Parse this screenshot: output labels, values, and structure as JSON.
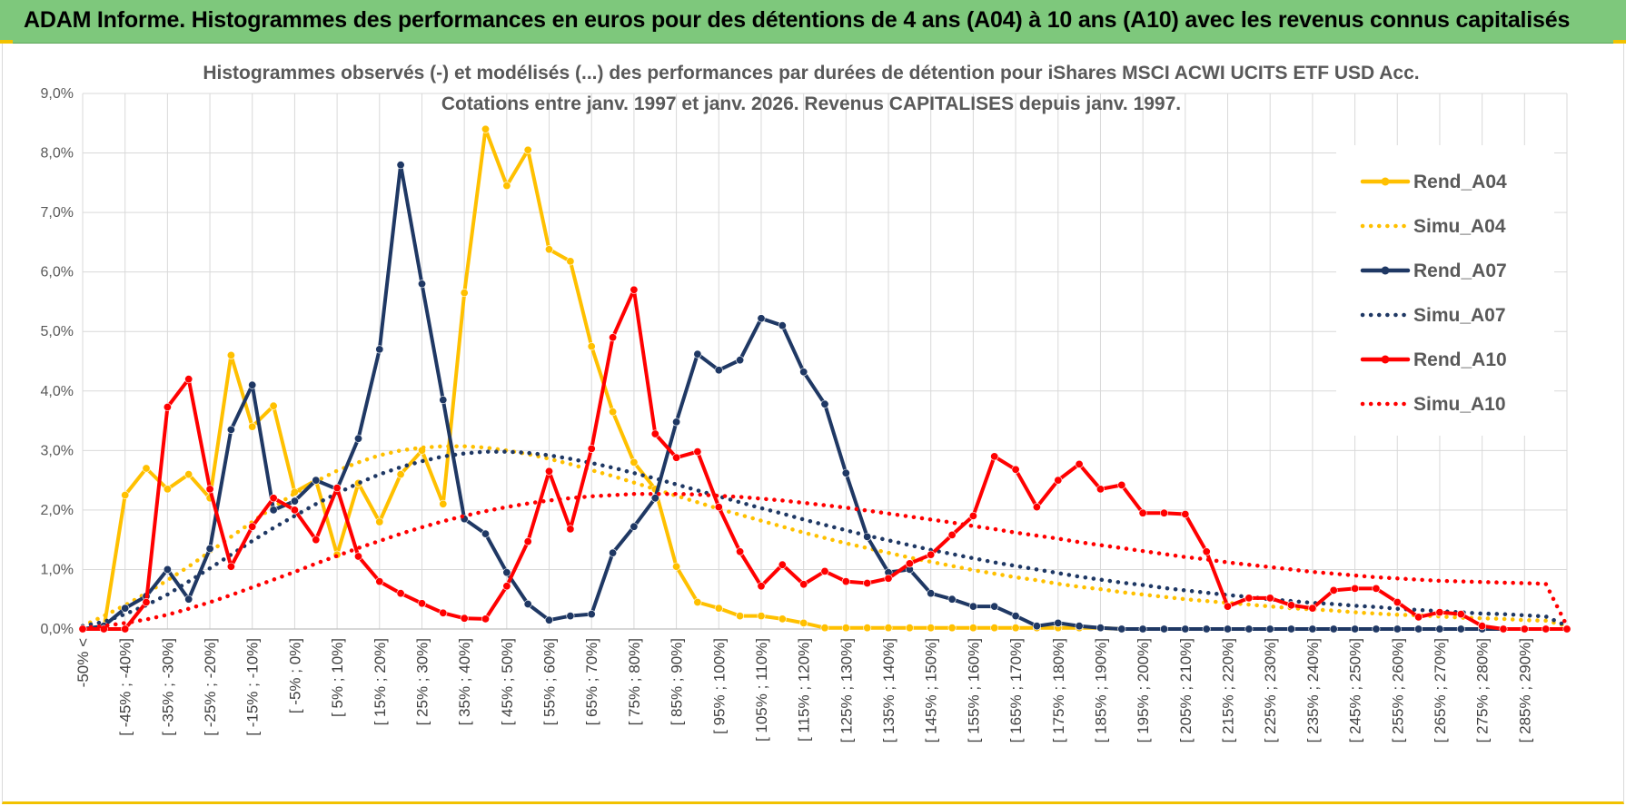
{
  "header": {
    "title": "ADAM Informe. Histogrammes des performances en euros pour des détentions de 4 ans (A04) à 10 ans (A10) avec les revenus connus capitalisés"
  },
  "chart_data": {
    "type": "line",
    "title": "Histogrammes observés (-) et modélisés (...) des performances par durées de détention pour iShares MSCI ACWI UCITS ETF USD Acc.",
    "subtitle": "Cotations entre janv. 1997 et janv. 2026. Revenus CAPITALISES depuis janv. 1997.",
    "ylim": [
      0,
      9
    ],
    "yticks": [
      0,
      1,
      2,
      3,
      4,
      5,
      6,
      7,
      8,
      9
    ],
    "ytick_labels": [
      "0,0%",
      "1,0%",
      "2,0%",
      "3,0%",
      "4,0%",
      "5,0%",
      "6,0%",
      "7,0%",
      "8,0%",
      "9,0%"
    ],
    "grid": true,
    "legend_position": "right",
    "categories": [
      "-50% <",
      "[ -50% ; -45%]",
      "[ -45% ; -40%]",
      "[ -40% ; -35%]",
      "[ -35% ; -30%]",
      "[ -30% ; -25%]",
      "[ -25% ; -20%]",
      "[ -20% ; -15%]",
      "[ -15% ; -10%]",
      "[ -10% ; -5%]",
      "[ -5% ; 0%]",
      "[ 0% ; 5%]",
      "[ 5% ; 10%]",
      "[ 10% ; 15%]",
      "[ 15% ; 20%]",
      "[ 20% ; 25%]",
      "[ 25% ; 30%]",
      "[ 30% ; 35%]",
      "[ 35% ; 40%]",
      "[ 40% ; 45%]",
      "[ 45% ; 50%]",
      "[ 50% ; 55%]",
      "[ 55% ; 60%]",
      "[ 60% ; 65%]",
      "[ 65% ; 70%]",
      "[ 70% ; 75%]",
      "[ 75% ; 80%]",
      "[ 80% ; 85%]",
      "[ 85% ; 90%]",
      "[ 90% ; 95%]",
      "[ 95% ; 100%]",
      "[ 100% ; 105%]",
      "[ 105% ; 110%]",
      "[ 110% ; 115%]",
      "[ 115% ; 120%]",
      "[ 120% ; 125%]",
      "[ 125% ; 130%]",
      "[ 130% ; 135%]",
      "[ 135% ; 140%]",
      "[ 140% ; 145%]",
      "[ 145% ; 150%]",
      "[ 150% ; 155%]",
      "[ 155% ; 160%]",
      "[ 160% ; 165%]",
      "[ 165% ; 170%]",
      "[ 170% ; 175%]",
      "[ 175% ; 180%]",
      "[ 180% ; 185%]",
      "[ 185% ; 190%]",
      "[ 190% ; 195%]",
      "[ 195% ; 200%]",
      "[ 200% ; 205%]",
      "[ 205% ; 210%]",
      "[ 210% ; 215%]",
      "[ 215% ; 220%]",
      "[ 220% ; 225%]",
      "[ 225% ; 230%]",
      "[ 230% ; 235%]",
      "[ 235% ; 240%]",
      "[ 240% ; 245%]",
      "[ 245% ; 250%]",
      "[ 250% ; 255%]",
      "[ 255% ; 260%]",
      "[ 260% ; 265%]",
      "[ 265% ; 270%]",
      "[ 270% ; 275%]",
      "[ 275% ; 280%]",
      "[ 280% ; 285%]",
      "[ 285% ; 290%]",
      "[ 290% ; 295%]",
      "[ 295% ; 300%]"
    ],
    "visible_category_labels": [
      "-50% <",
      "[ -45% ; -40%]",
      "[ -35% ; -30%]",
      "[ -25% ; -20%]",
      "[ -15% ; -10%]",
      "[ -5% ; 0%]",
      "[ 5% ; 10%]",
      "[ 15% ; 20%]",
      "[ 25% ; 30%]",
      "[ 35% ; 40%]",
      "[ 45% ; 50%]",
      "[ 55% ; 60%]",
      "[ 65% ; 70%]",
      "[ 75% ; 80%]",
      "[ 85% ; 90%]",
      "[ 95% ; 100%]",
      "[ 105% ; 110%]",
      "[ 115% ; 120%]",
      "[ 125% ; 130%]",
      "[ 135% ; 140%]",
      "[ 145% ; 150%]",
      "[ 155% ; 160%]",
      "[ 165% ; 170%]",
      "[ 175% ; 180%]",
      "[ 185% ; 190%]",
      "[ 195% ; 200%]",
      "[ 205% ; 210%]",
      "[ 215% ; 220%]",
      "[ 225% ; 230%]",
      "[ 235% ; 240%]",
      "[ 245% ; 250%]",
      "[ 255% ; 260%]",
      "[ 265% ; 270%]",
      "[ 275% ; 280%]",
      "[ 285% ; 290%]"
    ],
    "series": [
      {
        "name": "Rend_A04",
        "color": "#ffc000",
        "style": "solid",
        "markers": true,
        "values": [
          0,
          0,
          2.25,
          2.7,
          2.35,
          2.6,
          2.2,
          4.6,
          3.4,
          3.75,
          2.3,
          2.5,
          1.25,
          2.45,
          1.8,
          2.6,
          3.0,
          2.1,
          5.65,
          8.4,
          7.45,
          8.05,
          6.38,
          6.18,
          4.75,
          3.65,
          2.8,
          2.35,
          1.05,
          0.45,
          0.35,
          0.22,
          0.22,
          0.17,
          0.1,
          0.02,
          0.02,
          0.02,
          0.02,
          0.02,
          0.02,
          0.02,
          0.02,
          0.02,
          0.02,
          0.02,
          0.02,
          0.02,
          0.02,
          0,
          0,
          0,
          0,
          0,
          0,
          0,
          0,
          0,
          0,
          0,
          0,
          0,
          0,
          0,
          0,
          0,
          0,
          0,
          0,
          0,
          0
        ]
      },
      {
        "name": "Simu_A04",
        "color": "#ffc000",
        "style": "dotted",
        "markers": false,
        "values": [
          0.05,
          0.22,
          0.4,
          0.6,
          0.82,
          1.05,
          1.3,
          1.55,
          1.8,
          2.05,
          2.28,
          2.48,
          2.66,
          2.8,
          2.92,
          3.0,
          3.05,
          3.07,
          3.07,
          3.05,
          3.0,
          2.94,
          2.86,
          2.77,
          2.67,
          2.57,
          2.46,
          2.35,
          2.24,
          2.13,
          2.02,
          1.92,
          1.82,
          1.72,
          1.62,
          1.53,
          1.44,
          1.36,
          1.28,
          1.2,
          1.13,
          1.06,
          0.99,
          0.93,
          0.87,
          0.82,
          0.76,
          0.71,
          0.67,
          0.62,
          0.58,
          0.54,
          0.5,
          0.47,
          0.44,
          0.41,
          0.38,
          0.35,
          0.33,
          0.31,
          0.28,
          0.26,
          0.24,
          0.23,
          0.21,
          0.19,
          0.18,
          0.17,
          0.15,
          0.14,
          0.05
        ]
      },
      {
        "name": "Rend_A07",
        "color": "#1f3864",
        "style": "solid",
        "markers": true,
        "values": [
          0,
          0.05,
          0.35,
          0.55,
          1.0,
          0.5,
          1.35,
          3.35,
          4.1,
          2.0,
          2.15,
          2.5,
          2.35,
          3.2,
          4.7,
          7.8,
          5.8,
          3.85,
          1.85,
          1.6,
          0.95,
          0.42,
          0.15,
          0.22,
          0.25,
          1.28,
          1.72,
          2.2,
          3.48,
          4.62,
          4.35,
          4.52,
          5.22,
          5.1,
          4.32,
          3.78,
          2.62,
          1.55,
          0.95,
          1.0,
          0.6,
          0.5,
          0.38,
          0.38,
          0.22,
          0.05,
          0.1,
          0.05,
          0.02,
          0,
          0,
          0,
          0,
          0,
          0,
          0,
          0,
          0,
          0,
          0,
          0,
          0,
          0,
          0,
          0,
          0,
          0,
          0,
          0,
          0,
          0
        ]
      },
      {
        "name": "Simu_A07",
        "color": "#1f3864",
        "style": "dotted",
        "markers": false,
        "values": [
          0.05,
          0.12,
          0.25,
          0.4,
          0.58,
          0.8,
          1.02,
          1.25,
          1.48,
          1.7,
          1.9,
          2.1,
          2.28,
          2.45,
          2.6,
          2.72,
          2.82,
          2.9,
          2.95,
          2.98,
          2.98,
          2.96,
          2.92,
          2.86,
          2.79,
          2.71,
          2.62,
          2.53,
          2.43,
          2.33,
          2.23,
          2.13,
          2.03,
          1.94,
          1.84,
          1.75,
          1.66,
          1.57,
          1.49,
          1.41,
          1.33,
          1.26,
          1.19,
          1.12,
          1.06,
          1.0,
          0.94,
          0.88,
          0.83,
          0.78,
          0.74,
          0.69,
          0.65,
          0.61,
          0.57,
          0.54,
          0.5,
          0.47,
          0.44,
          0.42,
          0.39,
          0.37,
          0.34,
          0.32,
          0.3,
          0.28,
          0.26,
          0.25,
          0.23,
          0.21,
          0.05
        ]
      },
      {
        "name": "Rend_A10",
        "color": "#ff0000",
        "style": "solid",
        "markers": true,
        "values": [
          0,
          0,
          0,
          0.45,
          3.73,
          4.2,
          2.35,
          1.05,
          1.72,
          2.2,
          2.0,
          1.5,
          2.37,
          1.22,
          0.8,
          0.6,
          0.43,
          0.27,
          0.18,
          0.17,
          0.72,
          1.47,
          2.65,
          1.68,
          3.03,
          4.9,
          5.7,
          3.28,
          2.88,
          2.98,
          2.05,
          1.3,
          0.72,
          1.08,
          0.75,
          0.97,
          0.8,
          0.77,
          0.85,
          1.1,
          1.25,
          1.58,
          1.9,
          2.9,
          2.68,
          2.05,
          2.5,
          2.77,
          2.35,
          2.42,
          1.95,
          1.95,
          1.93,
          1.3,
          0.38,
          0.52,
          0.52,
          0.4,
          0.35,
          0.65,
          0.68,
          0.68,
          0.45,
          0.2,
          0.28,
          0.25,
          0.05,
          0,
          0,
          0,
          0
        ]
      },
      {
        "name": "Simu_A10",
        "color": "#ff0000",
        "style": "dotted",
        "markers": false,
        "values": [
          0.02,
          0.05,
          0.1,
          0.16,
          0.24,
          0.34,
          0.45,
          0.57,
          0.7,
          0.83,
          0.96,
          1.1,
          1.23,
          1.36,
          1.48,
          1.6,
          1.71,
          1.81,
          1.9,
          1.98,
          2.05,
          2.11,
          2.16,
          2.2,
          2.23,
          2.25,
          2.27,
          2.27,
          2.27,
          2.26,
          2.24,
          2.22,
          2.19,
          2.16,
          2.12,
          2.08,
          2.04,
          1.99,
          1.94,
          1.89,
          1.84,
          1.79,
          1.73,
          1.68,
          1.62,
          1.57,
          1.52,
          1.46,
          1.41,
          1.36,
          1.31,
          1.26,
          1.21,
          1.17,
          1.12,
          1.08,
          1.04,
          1.0,
          0.96,
          0.93,
          0.9,
          0.87,
          0.85,
          0.83,
          0.81,
          0.8,
          0.79,
          0.78,
          0.77,
          0.76,
          0.05
        ]
      }
    ]
  }
}
